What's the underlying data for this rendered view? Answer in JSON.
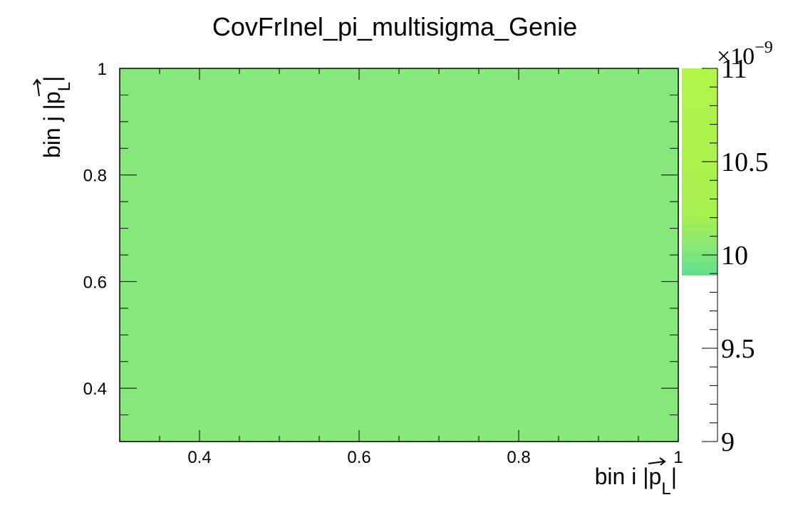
{
  "chart_data": {
    "type": "heatmap",
    "title": "CovFrInel_pi_multisigma_Genie",
    "xlabel": {
      "prefix": "bin i |",
      "var": "p",
      "sub": "L",
      "suffix": "|"
    },
    "ylabel": {
      "prefix": "bin j |",
      "var": "p",
      "sub": "L",
      "suffix": "|"
    },
    "xlim": [
      0.3,
      1.0
    ],
    "ylim": [
      0.3,
      1.0
    ],
    "x_ticks": [
      0.4,
      0.6,
      0.8,
      1
    ],
    "y_ticks": [
      0.4,
      0.6,
      0.8,
      1
    ],
    "x_tick_labels": [
      "0.4",
      "0.6",
      "0.8",
      "1"
    ],
    "y_tick_labels": [
      "0.4",
      "0.6",
      "0.8",
      "1"
    ],
    "cells": [
      {
        "x": [
          0.3,
          1.0
        ],
        "y": [
          0.3,
          1.0
        ],
        "value": 9.93e-09
      }
    ],
    "cell_color": "#86e87a",
    "colorbar": {
      "range": [
        9.0,
        11.0
      ],
      "exponent_label": "×10",
      "exponent_power": "−9",
      "ticks": [
        9,
        9.5,
        10,
        10.5,
        11
      ],
      "tick_labels": [
        "9",
        "9.5",
        "10",
        "10.5",
        "11"
      ],
      "filled_from": 9.89,
      "gradient": [
        {
          "v": 9.89,
          "color": "#5ee08e"
        },
        {
          "v": 10.05,
          "color": "#8ae875"
        },
        {
          "v": 10.2,
          "color": "#a6f050"
        },
        {
          "v": 11.0,
          "color": "#b0f548"
        }
      ]
    },
    "grid": false
  }
}
